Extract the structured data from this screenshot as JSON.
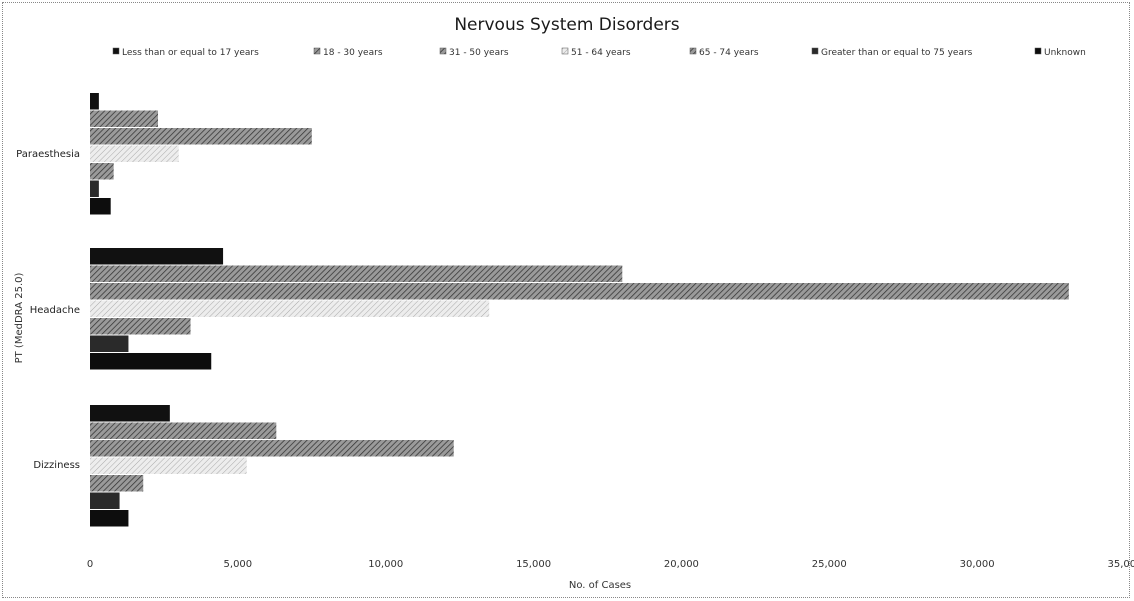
{
  "chart_data": {
    "type": "bar",
    "orientation": "horizontal",
    "title": "Nervous System Disorders",
    "xlabel": "No. of Cases",
    "ylabel": "PT (MedDRA 25.0)",
    "categories": [
      "Paraesthesia",
      "Headache",
      "Dizziness"
    ],
    "xlim": [
      0,
      35000
    ],
    "xticks": [
      "0",
      "5,000",
      "10,000",
      "15,000",
      "20,000",
      "25,000",
      "30,000",
      "35,000"
    ],
    "grid": false,
    "legend_position": "top",
    "series": [
      {
        "name": "Less than or equal to 17 years",
        "values": [
          300,
          4500,
          2700
        ]
      },
      {
        "name": "18 - 30 years",
        "values": [
          2300,
          18000,
          6300
        ]
      },
      {
        "name": "31 - 50 years",
        "values": [
          7500,
          33100,
          12300
        ]
      },
      {
        "name": "51 - 64 years",
        "values": [
          3000,
          13500,
          5300
        ]
      },
      {
        "name": "65 - 74 years",
        "values": [
          800,
          3400,
          1800
        ]
      },
      {
        "name": "Greater than or equal to 75 years",
        "values": [
          300,
          1300,
          1000
        ]
      },
      {
        "name": "Unknown",
        "values": [
          700,
          4100,
          1300
        ]
      }
    ]
  },
  "colors": {
    "series": [
      "#111111",
      "#444444",
      "#777777",
      "#c8c8c8",
      "#3a3a3a",
      "#2a2a2a",
      "#0d0d0d"
    ],
    "text": "#333333",
    "border": "#888888"
  }
}
